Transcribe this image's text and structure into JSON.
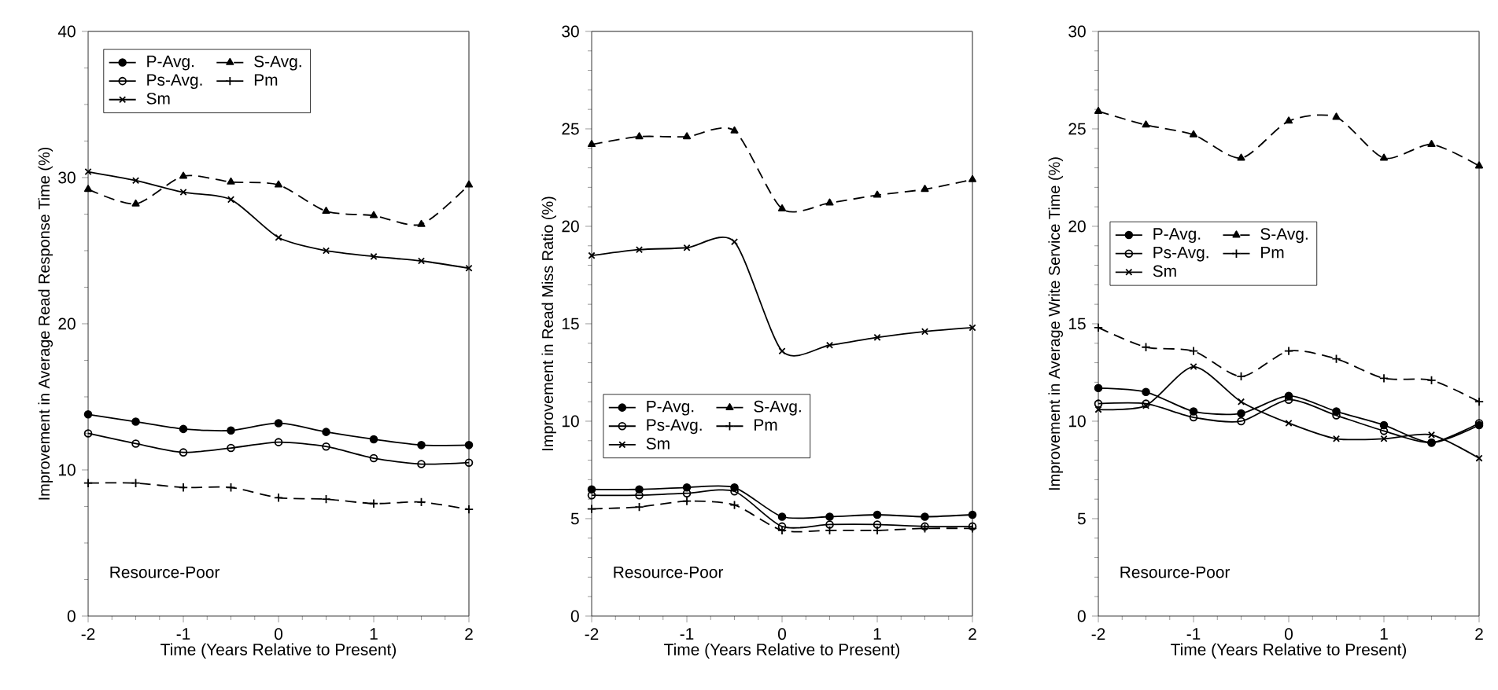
{
  "chart_data": [
    {
      "type": "line",
      "xlabel": "Time (Years Relative to Present)",
      "ylabel": "Improvement in Average Read Response Time (%)",
      "x": [
        -2,
        -1.5,
        -1,
        -0.5,
        0,
        0.5,
        1,
        1.5,
        2
      ],
      "xlim": [
        -2,
        2
      ],
      "xticks": [
        -2,
        -1,
        0,
        1,
        2
      ],
      "ylim": [
        0,
        40
      ],
      "yticks": [
        0,
        10,
        20,
        30,
        40
      ],
      "legend": "top left",
      "grid": false,
      "annotations": [
        "Resource-Poor"
      ],
      "series": [
        {
          "name": "P-Avg.",
          "color": "#000000",
          "marker": "circle",
          "line_style": "solid",
          "values": [
            13.8,
            13.3,
            12.8,
            12.7,
            13.2,
            12.6,
            12.1,
            11.7,
            11.7
          ]
        },
        {
          "name": "S-Avg.",
          "color": "#000000",
          "marker": "triangle",
          "line_style": "dashed",
          "values": [
            29.2,
            28.2,
            30.1,
            29.7,
            29.5,
            27.7,
            27.4,
            26.8,
            29.5
          ]
        },
        {
          "name": "Ps-Avg.",
          "color": "#000000",
          "marker": "circle_open",
          "line_style": "solid",
          "values": [
            12.5,
            11.8,
            11.2,
            11.5,
            11.9,
            11.6,
            10.8,
            10.4,
            10.5
          ]
        },
        {
          "name": "Pm",
          "color": "#000000",
          "marker": "plus",
          "line_style": "dashed",
          "values": [
            9.1,
            9.1,
            8.8,
            8.8,
            8.1,
            8.0,
            7.7,
            7.8,
            7.3
          ]
        },
        {
          "name": "Sm",
          "color": "#000000",
          "marker": "cross",
          "line_style": "solid",
          "values": [
            30.4,
            29.8,
            29.0,
            28.5,
            25.9,
            25.0,
            24.6,
            24.3,
            23.8
          ]
        }
      ]
    },
    {
      "type": "line",
      "xlabel": "Time (Years Relative to Present)",
      "ylabel": "Improvement in Read Miss Ratio (%)",
      "x": [
        -2,
        -1.5,
        -1,
        -0.5,
        0,
        0.5,
        1,
        1.5,
        2
      ],
      "xlim": [
        -2,
        2
      ],
      "xticks": [
        -2,
        -1,
        0,
        1,
        2
      ],
      "ylim": [
        0,
        30
      ],
      "yticks": [
        0,
        5,
        10,
        15,
        20,
        25,
        30
      ],
      "legend": "bottom left",
      "grid": false,
      "annotations": [
        "Resource-Poor"
      ],
      "series": [
        {
          "name": "P-Avg.",
          "color": "#000000",
          "marker": "circle",
          "line_style": "solid",
          "values": [
            6.5,
            6.5,
            6.6,
            6.6,
            5.1,
            5.1,
            5.2,
            5.1,
            5.2
          ]
        },
        {
          "name": "S-Avg.",
          "color": "#000000",
          "marker": "triangle",
          "line_style": "dashed",
          "values": [
            24.2,
            24.6,
            24.6,
            24.9,
            20.9,
            21.2,
            21.6,
            21.9,
            22.4
          ]
        },
        {
          "name": "Ps-Avg.",
          "color": "#000000",
          "marker": "circle_open",
          "line_style": "solid",
          "values": [
            6.2,
            6.2,
            6.3,
            6.4,
            4.6,
            4.7,
            4.7,
            4.6,
            4.6
          ]
        },
        {
          "name": "Pm",
          "color": "#000000",
          "marker": "plus",
          "line_style": "dashed",
          "values": [
            5.5,
            5.6,
            5.9,
            5.7,
            4.4,
            4.4,
            4.4,
            4.5,
            4.5
          ]
        },
        {
          "name": "Sm",
          "color": "#000000",
          "marker": "cross",
          "line_style": "solid",
          "values": [
            18.5,
            18.8,
            18.9,
            19.2,
            13.6,
            13.9,
            14.3,
            14.6,
            14.8
          ]
        }
      ]
    },
    {
      "type": "line",
      "xlabel": "Time (Years Relative to Present)",
      "ylabel": "Improvement in Average Write Service Time (%)",
      "x": [
        -2,
        -1.5,
        -1,
        -0.5,
        0,
        0.5,
        1,
        1.5,
        2
      ],
      "xlim": [
        -2,
        2
      ],
      "xticks": [
        -2,
        -1,
        0,
        1,
        2
      ],
      "ylim": [
        0,
        30
      ],
      "yticks": [
        0,
        5,
        10,
        15,
        20,
        25,
        30
      ],
      "legend": "left",
      "grid": false,
      "annotations": [
        "Resource-Poor"
      ],
      "series": [
        {
          "name": "P-Avg.",
          "color": "#000000",
          "marker": "circle",
          "line_style": "solid",
          "values": [
            11.7,
            11.5,
            10.5,
            10.4,
            11.3,
            10.5,
            9.8,
            8.9,
            9.8
          ]
        },
        {
          "name": "S-Avg.",
          "color": "#000000",
          "marker": "triangle",
          "line_style": "dashed",
          "values": [
            25.9,
            25.2,
            24.7,
            23.5,
            25.4,
            25.6,
            23.5,
            24.2,
            23.1
          ]
        },
        {
          "name": "Ps-Avg.",
          "color": "#000000",
          "marker": "circle_open",
          "line_style": "solid",
          "values": [
            10.9,
            10.9,
            10.2,
            10.0,
            11.1,
            10.3,
            9.5,
            8.9,
            9.9
          ]
        },
        {
          "name": "Pm",
          "color": "#000000",
          "marker": "plus",
          "line_style": "dashed",
          "values": [
            14.8,
            13.8,
            13.6,
            12.3,
            13.6,
            13.2,
            12.2,
            12.1,
            11.0
          ]
        },
        {
          "name": "Sm",
          "color": "#000000",
          "marker": "cross",
          "line_style": "solid",
          "values": [
            10.6,
            10.8,
            12.8,
            11.0,
            9.9,
            9.1,
            9.1,
            9.3,
            8.1
          ]
        }
      ]
    }
  ]
}
